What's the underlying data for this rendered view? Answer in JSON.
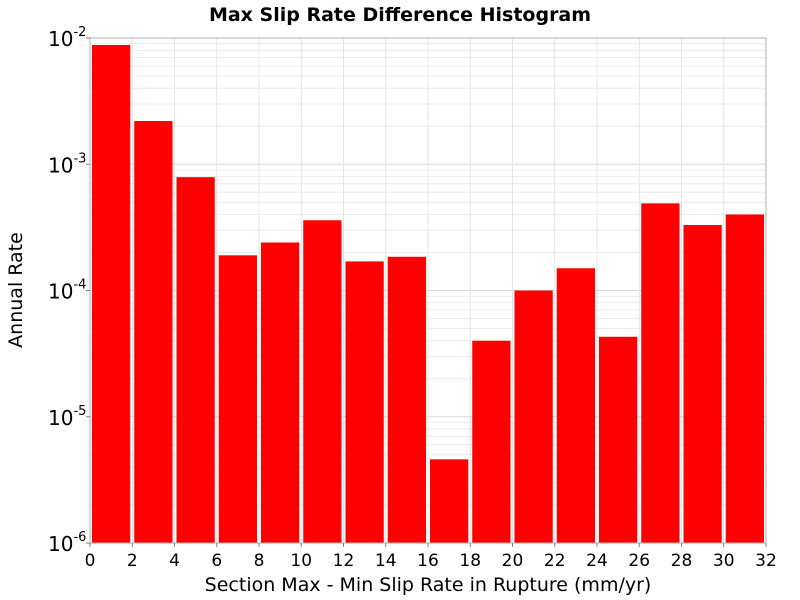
{
  "chart_data": {
    "type": "bar",
    "title": "Max Slip Rate Difference Histogram",
    "xlabel": "Section Max - Min Slip Rate in Rupture (mm/yr)",
    "ylabel": "Annual Rate",
    "y_scale": "log",
    "xlim": [
      0,
      32
    ],
    "ylim": [
      1e-06,
      0.01
    ],
    "bin_width": 2,
    "grid": true,
    "bar_color": "#ff0000",
    "x_ticks": [
      "0",
      "2",
      "4",
      "6",
      "8",
      "10",
      "12",
      "14",
      "16",
      "18",
      "20",
      "22",
      "24",
      "26",
      "28",
      "30",
      "32"
    ],
    "y_ticks": [
      {
        "base": "10",
        "exp": "-2"
      },
      {
        "base": "10",
        "exp": "-3"
      },
      {
        "base": "10",
        "exp": "-4"
      },
      {
        "base": "10",
        "exp": "-5"
      },
      {
        "base": "10",
        "exp": "-6"
      }
    ],
    "bins": [
      {
        "x0": 0,
        "value": 0.0088
      },
      {
        "x0": 2,
        "value": 0.0022
      },
      {
        "x0": 4,
        "value": 0.00079
      },
      {
        "x0": 6,
        "value": 0.00019
      },
      {
        "x0": 8,
        "value": 0.00024
      },
      {
        "x0": 10,
        "value": 0.00036
      },
      {
        "x0": 12,
        "value": 0.00017
      },
      {
        "x0": 14,
        "value": 0.000185
      },
      {
        "x0": 16,
        "value": 4.6e-06
      },
      {
        "x0": 18,
        "value": 4e-05
      },
      {
        "x0": 20,
        "value": 0.0001
      },
      {
        "x0": 22,
        "value": 0.00015
      },
      {
        "x0": 24,
        "value": 4.3e-05
      },
      {
        "x0": 26,
        "value": 0.00049
      },
      {
        "x0": 28,
        "value": 0.00033
      },
      {
        "x0": 30,
        "value": 0.0004
      }
    ]
  }
}
